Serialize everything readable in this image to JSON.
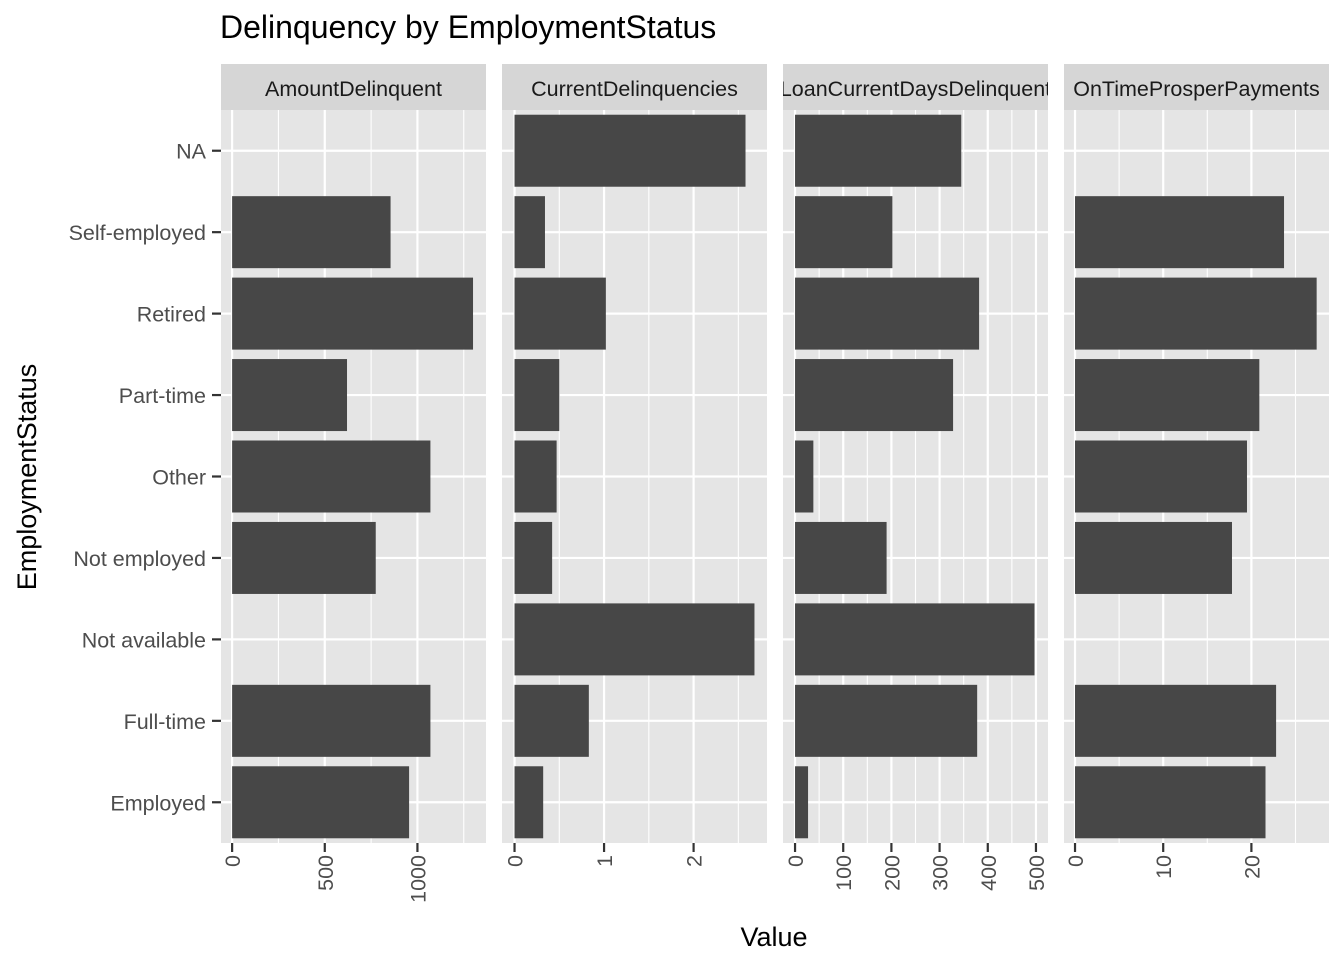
{
  "chart_data": {
    "type": "bar",
    "orientation": "horizontal",
    "title": "Delinquency by EmploymentStatus",
    "xlabel": "Value",
    "ylabel": "EmploymentStatus",
    "grid": true,
    "categories": [
      "NA",
      "Self-employed",
      "Retired",
      "Part-time",
      "Other",
      "Not employed",
      "Not available",
      "Full-time",
      "Employed"
    ],
    "colors": {
      "bar": "#474747",
      "panel_bg": "#e5e5e5",
      "grid": "#ffffff",
      "strip_bg": "#d6d6d6",
      "text": "#1a1a1a",
      "tick_text": "#4d4d4d"
    },
    "facets": [
      {
        "name": "AmountDelinquent",
        "xlim": [
          -60,
          1370
        ],
        "ticks": [
          0,
          500,
          1000
        ],
        "tick_labels": [
          "0",
          "500",
          "1000"
        ],
        "values": [
          null,
          855,
          1300,
          620,
          1070,
          775,
          null,
          1070,
          955
        ]
      },
      {
        "name": "CurrentDelinquencies",
        "xlim": [
          -0.14,
          2.82
        ],
        "ticks": [
          0,
          1,
          2
        ],
        "tick_labels": [
          "0",
          "1",
          "2"
        ],
        "values": [
          2.58,
          0.34,
          1.02,
          0.5,
          0.47,
          0.42,
          2.68,
          0.83,
          0.32
        ]
      },
      {
        "name": "LoanCurrentDaysDelinquent",
        "xlim": [
          -25,
          525
        ],
        "ticks": [
          0,
          100,
          200,
          300,
          400,
          500
        ],
        "tick_labels": [
          "0",
          "100",
          "200",
          "300",
          "400",
          "500"
        ],
        "values": [
          345,
          202,
          382,
          328,
          38,
          190,
          497,
          378,
          27
        ]
      },
      {
        "name": "OnTimeProsperPayments",
        "xlim": [
          -1.25,
          28.8
        ],
        "ticks": [
          0,
          10,
          20
        ],
        "tick_labels": [
          "0",
          "10",
          "20"
        ],
        "values": [
          null,
          23.7,
          27.4,
          20.9,
          19.5,
          17.8,
          null,
          22.8,
          21.6
        ]
      }
    ]
  }
}
